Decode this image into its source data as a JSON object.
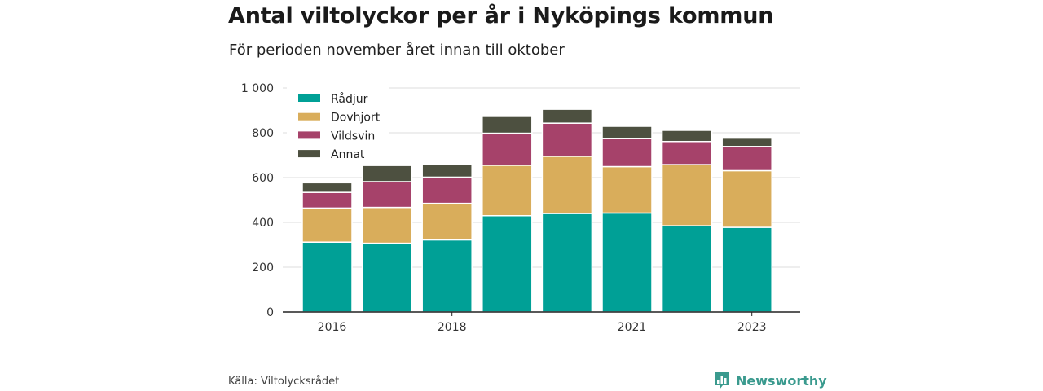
{
  "header": {
    "title": "Antal viltolyckor per år i Nyköpings kommun",
    "subtitle": "För perioden november året innan till oktober"
  },
  "footer": {
    "source": "Källa: Viltolycksrådet",
    "brand": "Newsworthy",
    "brand_icon": "newsworthy-logo-icon",
    "brand_color": "#3a9a8e"
  },
  "chart_data": {
    "type": "bar",
    "stacked": true,
    "categories": [
      "2016",
      "2017",
      "2018",
      "2019",
      "2020",
      "2021",
      "2022",
      "2023"
    ],
    "x_tick_labels": [
      "2016",
      "",
      "2018",
      "",
      "",
      "2021",
      "",
      "2023"
    ],
    "ylim": [
      0,
      1000
    ],
    "y_ticks": [
      0,
      200,
      400,
      600,
      800,
      1000
    ],
    "y_tick_labels": [
      "0",
      "200",
      "400",
      "600",
      "800",
      "1 000"
    ],
    "grid": true,
    "legend_position": "top-left",
    "series": [
      {
        "name": "Rådjur",
        "color": "#00a096",
        "values": [
          312,
          307,
          322,
          430,
          440,
          442,
          385,
          378
        ]
      },
      {
        "name": "Dovhjort",
        "color": "#d9ad5b",
        "values": [
          152,
          160,
          163,
          225,
          255,
          207,
          273,
          253
        ]
      },
      {
        "name": "Vildsvin",
        "color": "#a6426a",
        "values": [
          70,
          115,
          117,
          143,
          148,
          125,
          103,
          108
        ]
      },
      {
        "name": "Annat",
        "color": "#4d5040",
        "values": [
          43,
          72,
          58,
          75,
          62,
          55,
          50,
          37
        ]
      }
    ]
  }
}
